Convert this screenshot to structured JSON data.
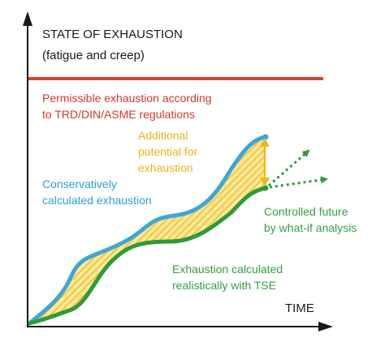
{
  "y_axis": {
    "title": "STATE OF EXHAUSTION",
    "subtitle": "(fatigue and creep)"
  },
  "x_axis": {
    "title": "TIME"
  },
  "labels": {
    "permissible": "Permissible exhaustion according\nto TRD/DIN/ASME regulations",
    "additional": "Additional\npotential for\nexhaustion",
    "conservative": "Conservatively\ncalculated exhaustion",
    "controlled": "Controlled future\nby what-if analysis",
    "realistic": "Exhaustion calculated\nrealistically with TSE"
  },
  "colors": {
    "permissible_line": "#d9422f",
    "conservative_curve": "#3da6dc",
    "realistic_curve": "#2e9a3c",
    "potential_area": "#f6c22a",
    "axis": "#1a1a1a"
  }
}
